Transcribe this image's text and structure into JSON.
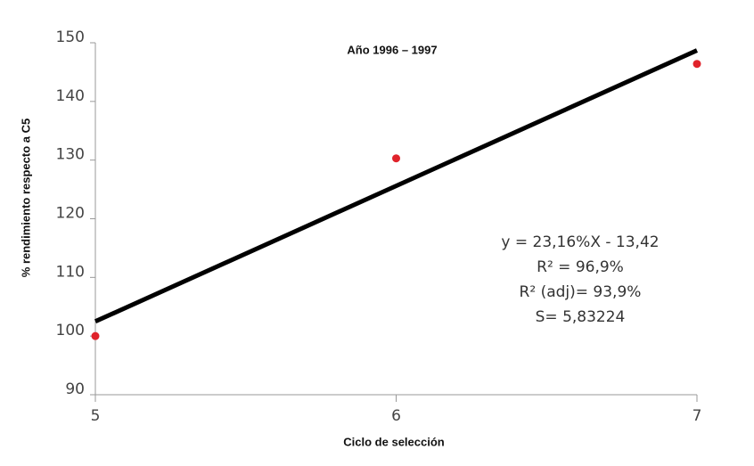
{
  "chart_data": {
    "type": "scatter",
    "title": "Año 1996 – 1997",
    "xlabel": "Ciclo de selección",
    "ylabel": "% rendimiento respecto a C5",
    "x": [
      5,
      6,
      7
    ],
    "values": [
      100,
      130.3,
      146.4
    ],
    "color": "#e0232b",
    "fit_line": {
      "x": [
        5,
        7
      ],
      "values": [
        102.5,
        148.7
      ],
      "color": "#000000"
    },
    "annotations": [
      "y = 23,16%X - 13,42",
      "R² = 96,9%",
      "R² (adj)= 93,9%",
      "S= 5,83224"
    ],
    "xlim": [
      5,
      7
    ],
    "xticks": [
      5,
      6,
      7
    ],
    "ylim": [
      90,
      150
    ],
    "yticks": [
      90,
      100,
      110,
      120,
      130,
      140,
      150
    ],
    "grid": false
  }
}
